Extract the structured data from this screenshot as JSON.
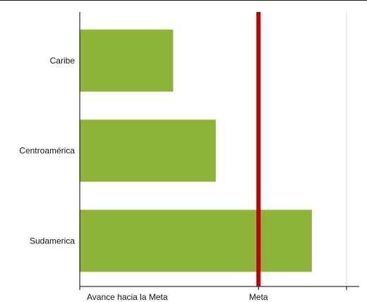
{
  "chart_data": {
    "type": "bar",
    "orientation": "horizontal",
    "categories": [
      "Caribe",
      "Centroamérica",
      "Sudamerica"
    ],
    "values": [
      0.35,
      0.51,
      0.87
    ],
    "xlim": [
      0,
      1
    ],
    "grid": false,
    "target_line": {
      "value": 0.67,
      "label": "Meta"
    },
    "x_tick_labels": [
      {
        "value": 0.0,
        "label": "Avance hacia la Meta"
      },
      {
        "value": 0.67,
        "label": "Meta"
      }
    ],
    "colors": {
      "bar": "#8db33a",
      "target": "#c00000",
      "axis": "#000000",
      "edge_line": "#d9d9d9"
    }
  }
}
